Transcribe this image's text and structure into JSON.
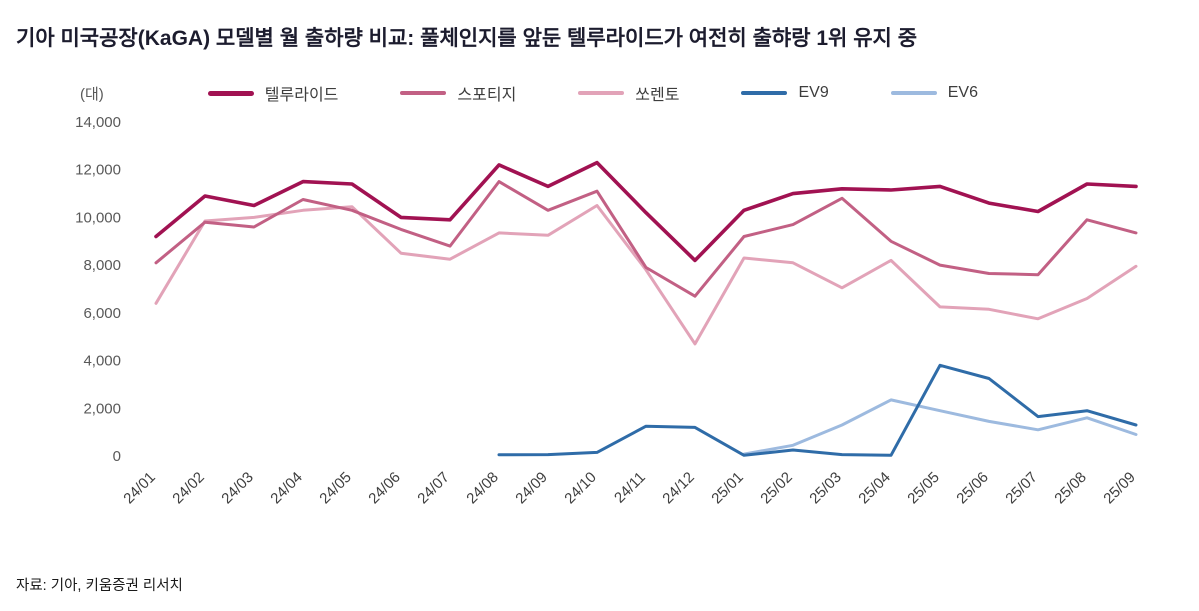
{
  "title": "기아 미국공장(KaGA) 모델별 월 출하량 비교: 풀체인지를 앞둔 텔루라이드가 여전히 출햐랑 1위 유지 중",
  "source": "자료: 기아, 키움증권 리서치",
  "chart_data": {
    "type": "line",
    "unit_label": "(대)",
    "title": "기아 미국공장(KaGA) 모델별 월 출하량 비교",
    "xlabel": "",
    "ylabel": "(대)",
    "ylim": [
      0,
      14000
    ],
    "y_tick_step": 2000,
    "grid": false,
    "legend_position": "top",
    "categories": [
      "24/01",
      "24/02",
      "24/03",
      "24/04",
      "24/05",
      "24/06",
      "24/07",
      "24/08",
      "24/09",
      "24/10",
      "24/11",
      "24/12",
      "25/01",
      "25/02",
      "25/03",
      "25/04",
      "25/05",
      "25/06",
      "25/07",
      "25/08",
      "25/09"
    ],
    "series": [
      {
        "id": "telluride",
        "name": "텔루라이드",
        "color": "#A11252",
        "stroke_width": 3.6,
        "values": [
          9200,
          10900,
          10500,
          11500,
          11400,
          10000,
          9900,
          12200,
          11300,
          12300,
          10200,
          8200,
          10300,
          11000,
          11200,
          11150,
          11300,
          10600,
          10250,
          11400,
          11300
        ]
      },
      {
        "id": "sportage",
        "name": "스포티지",
        "color": "#C26084",
        "stroke_width": 3,
        "values": [
          8100,
          9800,
          9600,
          10750,
          10300,
          9500,
          8800,
          11500,
          10300,
          11100,
          7900,
          6700,
          9200,
          9700,
          10800,
          9000,
          8000,
          7650,
          7600,
          9900,
          9350
        ]
      },
      {
        "id": "sorento",
        "name": "쏘렌토",
        "color": "#E2A3B8",
        "stroke_width": 3,
        "values": [
          6400,
          9850,
          10000,
          10300,
          10450,
          8500,
          8250,
          9350,
          9250,
          10500,
          7800,
          4700,
          8300,
          8100,
          7050,
          8200,
          6250,
          6150,
          5750,
          6600,
          7950
        ]
      },
      {
        "id": "ev9",
        "name": "EV9",
        "color": "#2F6CA8",
        "stroke_width": 3,
        "values": [
          null,
          null,
          null,
          null,
          null,
          null,
          null,
          50,
          60,
          150,
          1250,
          1200,
          30,
          250,
          60,
          30,
          3800,
          3250,
          1650,
          1900,
          1300
        ]
      },
      {
        "id": "ev6",
        "name": "EV6",
        "color": "#9DBADF",
        "stroke_width": 3,
        "values": [
          null,
          null,
          null,
          null,
          null,
          null,
          null,
          null,
          null,
          null,
          null,
          null,
          80,
          450,
          1300,
          2350,
          1900,
          1450,
          1100,
          1600,
          900
        ]
      }
    ]
  }
}
